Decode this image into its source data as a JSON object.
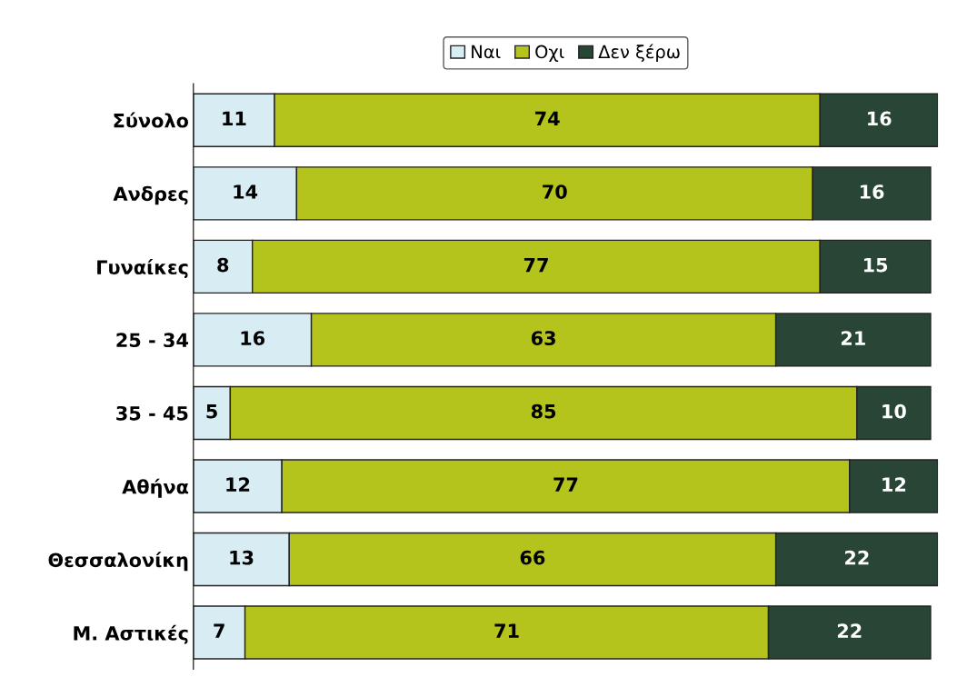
{
  "chart_data": {
    "type": "bar",
    "orientation": "horizontal",
    "stacked": true,
    "data_labels": true,
    "legend": "top",
    "grid": false,
    "categories": [
      "Σύνολο",
      "Ανδρες",
      "Γυναίκες",
      "25 - 34",
      "35 - 45",
      "Αθήνα",
      "Θεσσαλονίκη",
      "Μ. Αστικές"
    ],
    "series": [
      {
        "name": "Ναι",
        "color": "#d8ecf4",
        "values": [
          11,
          14,
          8,
          16,
          5,
          12,
          13,
          7
        ]
      },
      {
        "name": "Οχι",
        "color": "#b4c41c",
        "values": [
          74,
          70,
          77,
          63,
          85,
          77,
          66,
          71
        ]
      },
      {
        "name": "Δεν ξέρω",
        "color": "#284536",
        "values": [
          16,
          16,
          15,
          21,
          10,
          12,
          22,
          22
        ]
      }
    ]
  }
}
